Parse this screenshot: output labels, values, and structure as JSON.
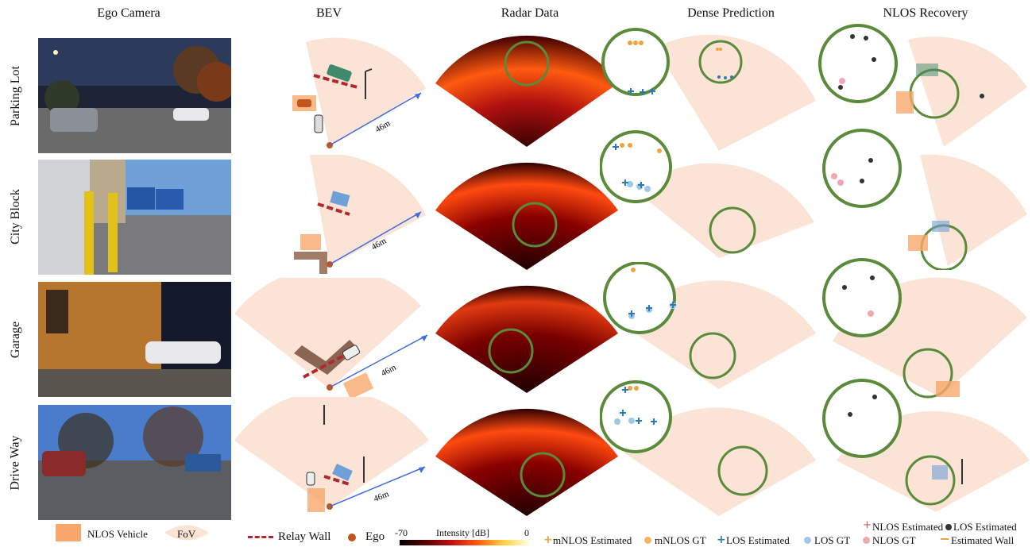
{
  "columns": [
    "Ego Camera",
    "BEV",
    "Radar Data",
    "Dense Prediction",
    "NLOS Recovery"
  ],
  "rows": [
    "Parking Lot",
    "City Block",
    "Garage",
    "Drive Way"
  ],
  "distance_label": "46m",
  "legend": {
    "nlos_vehicle": "NLOS Vehicle",
    "fov": "FoV",
    "relay_wall": "Relay Wall",
    "ego": "Ego",
    "colorbar_min": "-70",
    "colorbar_title": "Intensity [dB]",
    "colorbar_max": "0",
    "mnlos_estimated": "mNLOS Estimated",
    "mnlos_gt": "mNLOS GT",
    "los_estimated": "LOS Estimated",
    "los_gt": "LOS GT",
    "nlos_estimated": "NLOS Estimated",
    "los_estimated_2": "LOS Estimated",
    "nlos_gt": "NLOS GT",
    "estimated_wall": "Estimated Wall"
  },
  "colors": {
    "fov": "#fbe3d6",
    "nlos_vehicle": "#f7a86a",
    "relay_wall": "#b3282d",
    "ego": "#c0561b",
    "mnlos": "#f2a33a",
    "los": "#2a7bb5",
    "los_gt": "#9ec8e6",
    "nlos_est": "#d45050",
    "nlos_gt": "#f0a9b3",
    "zoom_circle": "#5a8a3a"
  }
}
